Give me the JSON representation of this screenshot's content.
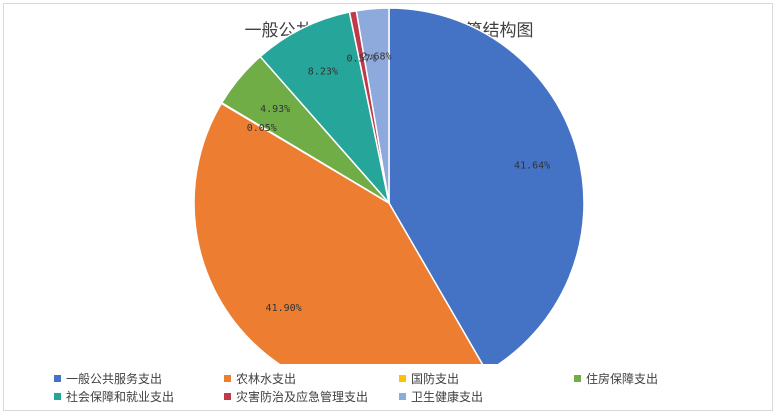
{
  "chart_data": {
    "type": "pie",
    "title": "一般公共预算财政拨款支出决算结构图",
    "start_angle_deg": 0,
    "direction": "clockwise",
    "legend_position": "bottom",
    "slices": [
      {
        "name": "一般公共服务支出",
        "value": 41.64,
        "label": "41.64%",
        "color": "#4472C4"
      },
      {
        "name": "农林水支出",
        "value": 41.9,
        "label": "41.90%",
        "color": "#ED7D31"
      },
      {
        "name": "国防支出",
        "value": 0.05,
        "label": "0.05%",
        "color": "#FFC000"
      },
      {
        "name": "住房保障支出",
        "value": 4.93,
        "label": "4.93%",
        "color": "#70AD47"
      },
      {
        "name": "社会保障和就业支出",
        "value": 8.23,
        "label": "8.23%",
        "color": "#26A69A"
      },
      {
        "name": "灾害防治及应急管理支出",
        "value": 0.57,
        "label": "0.57%",
        "color": "#C0394B"
      },
      {
        "name": "卫生健康支出",
        "value": 2.68,
        "label": "2.68%",
        "color": "#8EA9DB"
      }
    ]
  }
}
